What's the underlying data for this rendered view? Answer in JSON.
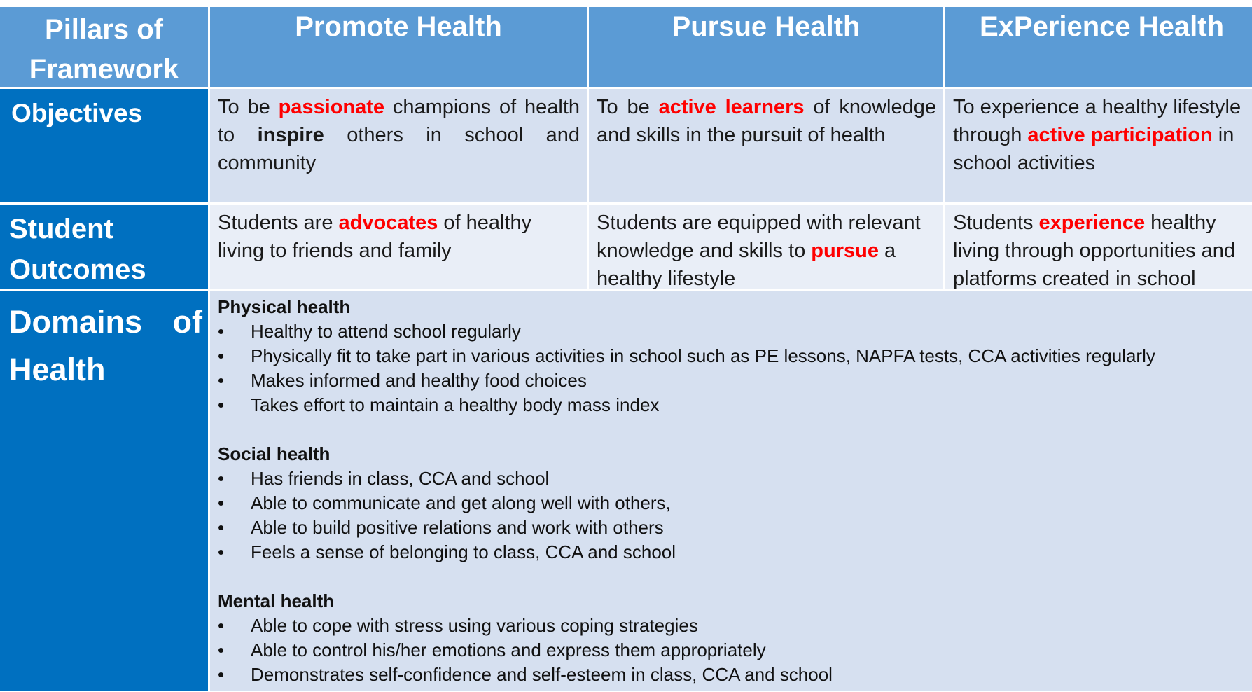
{
  "header": {
    "pillars": "Pillars of Framework",
    "promote": "Promote Health",
    "pursue": "Pursue Health",
    "experience": "ExPerience Health"
  },
  "objectives": {
    "label": "Objectives",
    "promote": {
      "pre": "To be ",
      "hl": "passionate",
      "mid": " champions of health to ",
      "bold": "inspire",
      "post": " others in school and community"
    },
    "pursue": {
      "pre": "To be ",
      "hl": "active learners",
      "post": " of knowledge and skills in the pursuit of health"
    },
    "experience": {
      "pre": "To experience a healthy lifestyle through ",
      "hl": "active participation",
      "post": " in school activities"
    }
  },
  "outcomes": {
    "label": "Student Outcomes",
    "promote": {
      "pre": "Students are ",
      "hl": "advocates",
      "post": " of healthy living to friends and family"
    },
    "pursue": {
      "pre": "Students are equipped with relevant knowledge and skills to ",
      "hl": "pursue",
      "post": " a healthy lifestyle"
    },
    "experience": {
      "pre": "Students ",
      "hl": "experience",
      "post": " healthy living through opportunities and platforms created in school"
    }
  },
  "domains": {
    "label": "Domains of Health",
    "bullet_char": "•",
    "sections": [
      {
        "title": "Physical health",
        "items": [
          "Healthy to attend school regularly",
          "Physically fit to take part in various activities in school such as PE lessons, NAPFA tests, CCA activities regularly",
          "Makes informed and healthy food choices",
          "Takes effort to maintain a healthy body mass index"
        ]
      },
      {
        "title": "Social health",
        "items": [
          "Has friends in class, CCA and school",
          "Able to communicate and get along well with others,",
          "Able to build positive relations and work with others",
          "Feels a sense of belonging to class, CCA and school"
        ]
      },
      {
        "title": "Mental health",
        "items": [
          "Able to cope with stress using various coping strategies",
          "Able to control his/her emotions and express them appropriately",
          "Demonstrates self-confidence and self-esteem in class, CCA and school"
        ]
      }
    ]
  },
  "colors": {
    "header_bg": "#5b9bd5",
    "rowhead_bg": "#0070c0",
    "highlight": "#ff0000",
    "row_light": "#d6e0f0",
    "row_lighter": "#e9eef7"
  }
}
